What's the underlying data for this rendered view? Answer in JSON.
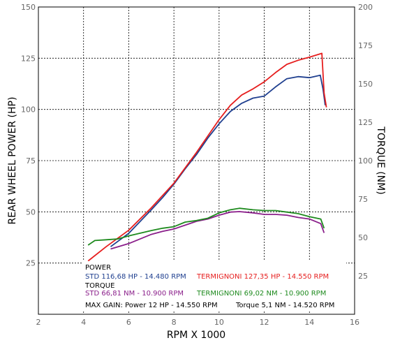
{
  "chart_data": {
    "type": "line",
    "xlabel": "RPM X 1000",
    "ylabel_left": "REAR WHEEL POWER (HP)",
    "ylabel_right": "TORQUE (NM)",
    "xlim": [
      2,
      16
    ],
    "ylim_left": [
      0,
      150
    ],
    "ylim_right": [
      0,
      200
    ],
    "x_ticks": [
      2,
      4,
      6,
      8,
      10,
      12,
      14,
      16
    ],
    "y_left_ticks": [
      25,
      50,
      75,
      100,
      125,
      150
    ],
    "y_right_ticks": [
      25,
      50,
      75,
      100,
      125,
      150,
      175,
      200
    ],
    "grid": true,
    "colors": {
      "std_power": "#1f3f8f",
      "termignoni_power": "#e61e1e",
      "std_torque": "#8a1e8a",
      "termignoni_torque": "#1e8a1e"
    },
    "series": [
      {
        "key": "std_power",
        "axis": "left",
        "color": "#1f3f8f",
        "points": [
          [
            5.2,
            33
          ],
          [
            6,
            39.5
          ],
          [
            7,
            51
          ],
          [
            7.5,
            57
          ],
          [
            8,
            63.5
          ],
          [
            8.5,
            71
          ],
          [
            9,
            78
          ],
          [
            9.5,
            86
          ],
          [
            10,
            93
          ],
          [
            10.5,
            99
          ],
          [
            11,
            103
          ],
          [
            11.5,
            105.5
          ],
          [
            12,
            106.5
          ],
          [
            12.5,
            111
          ],
          [
            13,
            115
          ],
          [
            13.5,
            116
          ],
          [
            14,
            115.5
          ],
          [
            14.48,
            116.7
          ],
          [
            14.6,
            110
          ],
          [
            14.7,
            102
          ]
        ]
      },
      {
        "key": "termignoni_power",
        "axis": "left",
        "color": "#e61e1e",
        "points": [
          [
            4.2,
            26
          ],
          [
            5,
            33
          ],
          [
            6,
            41
          ],
          [
            7,
            52
          ],
          [
            7.5,
            58
          ],
          [
            8,
            64
          ],
          [
            8.5,
            71.5
          ],
          [
            9,
            79
          ],
          [
            9.5,
            87
          ],
          [
            10,
            95
          ],
          [
            10.5,
            102
          ],
          [
            11,
            107
          ],
          [
            11.5,
            110
          ],
          [
            12,
            113.5
          ],
          [
            12.5,
            118
          ],
          [
            13,
            122
          ],
          [
            13.5,
            124
          ],
          [
            14,
            125.5
          ],
          [
            14.55,
            127.35
          ],
          [
            14.65,
            108
          ],
          [
            14.75,
            101
          ]
        ]
      },
      {
        "key": "std_torque",
        "axis": "right",
        "color": "#8a1e8a",
        "points": [
          [
            5.2,
            42.5
          ],
          [
            6,
            46
          ],
          [
            7,
            52
          ],
          [
            7.5,
            54
          ],
          [
            8,
            55.5
          ],
          [
            8.5,
            58
          ],
          [
            9,
            60.5
          ],
          [
            9.5,
            62
          ],
          [
            10,
            64.5
          ],
          [
            10.5,
            66.5
          ],
          [
            10.9,
            66.81
          ],
          [
            11.5,
            66
          ],
          [
            12,
            65
          ],
          [
            12.5,
            65
          ],
          [
            13,
            64.5
          ],
          [
            13.5,
            63
          ],
          [
            14,
            62
          ],
          [
            14.5,
            59
          ],
          [
            14.6,
            55
          ],
          [
            14.65,
            53
          ]
        ]
      },
      {
        "key": "termignoni_torque",
        "axis": "right",
        "color": "#1e8a1e",
        "points": [
          [
            4.2,
            45
          ],
          [
            4.5,
            48
          ],
          [
            5,
            48.5
          ],
          [
            5.5,
            49
          ],
          [
            6,
            51
          ],
          [
            7,
            54.5
          ],
          [
            7.5,
            56
          ],
          [
            8,
            57
          ],
          [
            8.5,
            60
          ],
          [
            9,
            61
          ],
          [
            9.5,
            62.5
          ],
          [
            10,
            66
          ],
          [
            10.5,
            68
          ],
          [
            10.9,
            69.02
          ],
          [
            11.5,
            68
          ],
          [
            12,
            67.5
          ],
          [
            12.5,
            67.5
          ],
          [
            13,
            66.5
          ],
          [
            13.5,
            65.5
          ],
          [
            14,
            63.5
          ],
          [
            14.5,
            62
          ],
          [
            14.6,
            58
          ],
          [
            14.65,
            56
          ]
        ]
      }
    ],
    "legend": {
      "power_header": "POWER",
      "std_power": "STD 116,68 HP - 14.480 RPM",
      "termignoni_power": "TERMIGNONI 127,35 HP - 14.550 RPM",
      "torque_header": "TORQUE",
      "std_torque": "STD  66,81 NM - 10.900 RPM",
      "termignoni_torque": "TERMIGNONI  69,02 NM - 10.900 RPM",
      "max_gain_power": "MAX GAIN: Power 12 HP - 14.550 RPM",
      "max_gain_torque": "Torque 5,1 NM - 14.520 RPM"
    }
  }
}
